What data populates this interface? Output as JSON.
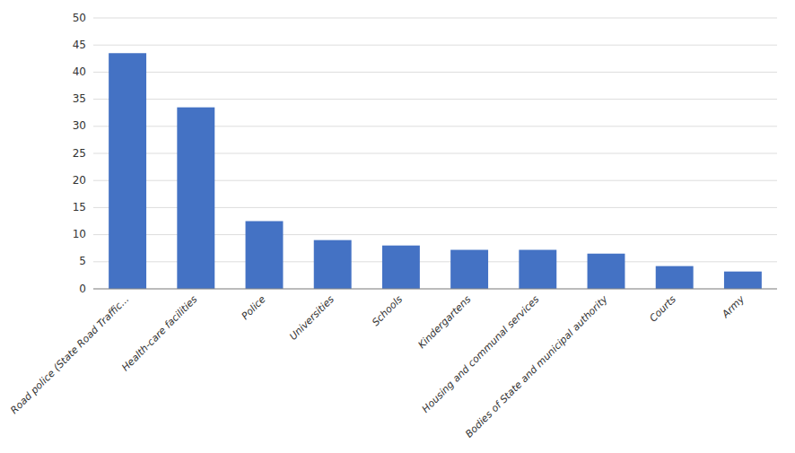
{
  "chart_data": {
    "type": "bar",
    "categories": [
      "Road police (State Road Traffic...",
      "Health-care facilities",
      "Police",
      "Universities",
      "Schools",
      "Kindergartens",
      "Housing and communal services",
      "Bodies of State and municipal authority",
      "Courts",
      "Army"
    ],
    "values": [
      43.5,
      33.5,
      12.5,
      9.0,
      8.0,
      7.2,
      7.2,
      6.5,
      4.2,
      3.2
    ],
    "color": "#4472C4",
    "ylim": [
      0,
      50
    ],
    "yticks": [
      0,
      5,
      10,
      15,
      20,
      25,
      30,
      35,
      40,
      45,
      50
    ],
    "grid": true
  }
}
